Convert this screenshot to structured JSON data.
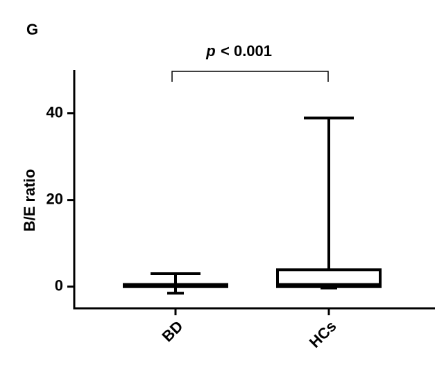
{
  "chart_data": {
    "type": "box",
    "panel_label": "G",
    "ylabel": "B/E ratio",
    "annotation": {
      "italic": "p",
      "text": "< 0.001"
    },
    "categories": [
      "BD",
      "HCs"
    ],
    "boxes": [
      {
        "min": -1.5,
        "q1": 0,
        "median": 0.2,
        "q3": 0.5,
        "max": 3
      },
      {
        "min": -0.3,
        "q1": 0,
        "median": 0.5,
        "q3": 3.9,
        "max": 38.9
      }
    ],
    "color": "#000000",
    "ylim": [
      -5,
      50
    ],
    "yticks": [
      0,
      20,
      40
    ]
  }
}
